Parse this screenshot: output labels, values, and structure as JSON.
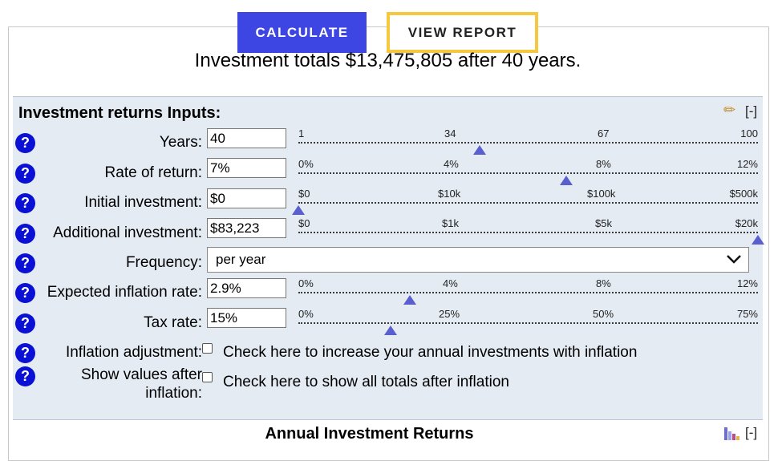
{
  "buttons": {
    "calculate": "CALCULATE",
    "view_report": "VIEW REPORT"
  },
  "summary": "Investment totals $13,475,805 after 40 years.",
  "panel": {
    "title": "Investment returns Inputs:",
    "collapse": "[-]"
  },
  "help_label": "?",
  "fields": {
    "years": {
      "label": "Years:",
      "value": "40",
      "slider": {
        "ticks": [
          "1",
          "34",
          "67",
          "100"
        ],
        "position": 0.394
      }
    },
    "rate": {
      "label": "Rate of return:",
      "value": "7%",
      "slider": {
        "ticks": [
          "0%",
          "4%",
          "8%",
          "12%"
        ],
        "position": 0.583
      }
    },
    "initial": {
      "label": "Initial investment:",
      "value": "$0",
      "slider": {
        "ticks": [
          "$0",
          "$10k",
          "$100k",
          "$500k"
        ],
        "position": 0.0
      }
    },
    "additional": {
      "label": "Additional investment:",
      "value": "$83,223",
      "slider": {
        "ticks": [
          "$0",
          "$1k",
          "$5k",
          "$20k"
        ],
        "position": 1.0
      }
    },
    "frequency": {
      "label": "Frequency:",
      "value": "per year"
    },
    "inflation": {
      "label": "Expected inflation rate:",
      "value": "2.9%",
      "slider": {
        "ticks": [
          "0%",
          "4%",
          "8%",
          "12%"
        ],
        "position": 0.242
      }
    },
    "tax": {
      "label": "Tax rate:",
      "value": "15%",
      "slider": {
        "ticks": [
          "0%",
          "25%",
          "50%",
          "75%"
        ],
        "position": 0.2
      }
    },
    "inflation_adjustment": {
      "label": "Inflation adjustment:",
      "text": "Check here to increase your annual investments with inflation",
      "checked": false
    },
    "show_after_inflation": {
      "label_line1": "Show values after",
      "label_line2": "inflation:",
      "text": "Check here to show all totals after inflation",
      "checked": false
    }
  },
  "section": {
    "title": "Annual Investment Returns",
    "collapse": "[-]"
  },
  "colors": {
    "button_blue": "#3d46e3",
    "report_border": "#f6c840",
    "help_blue": "#0a10d4",
    "panel_bg": "#e4ebf3",
    "thumb": "#5a5fcf"
  },
  "icons": {
    "edit": "pencil-icon",
    "chart": "bar-chart-icon",
    "dropdown": "chevron-down-icon"
  }
}
